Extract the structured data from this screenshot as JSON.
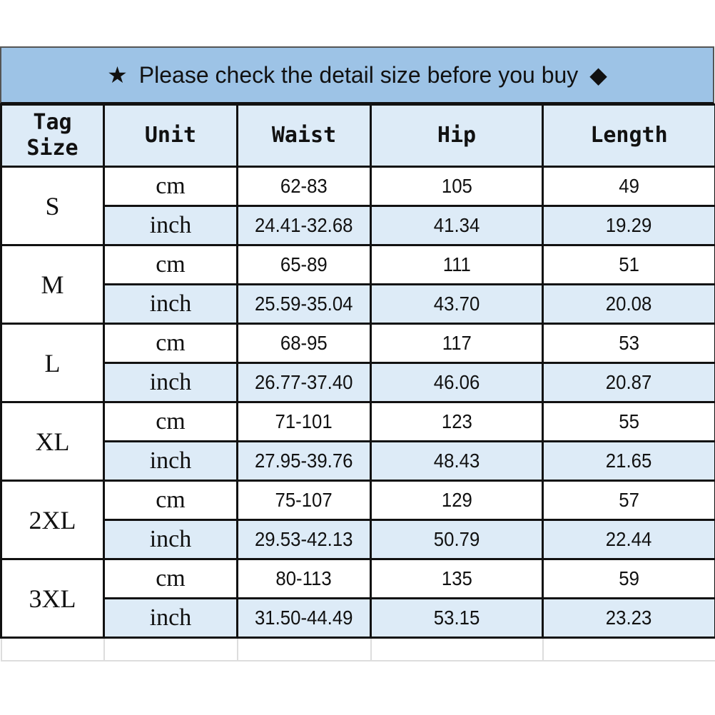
{
  "title": {
    "prefix_icon": "star-icon",
    "text": "Please check the detail size before you buy",
    "suffix_icon": "diamond-icon",
    "prefix_glyph": "★",
    "suffix_glyph": "◆"
  },
  "colors": {
    "title_bg": "#9dc3e6",
    "alt_row_bg": "#ddebf7"
  },
  "headers": [
    "Tag Size",
    "Unit",
    "Waist",
    "Hip",
    "Length"
  ],
  "sizes": [
    {
      "size": "S",
      "rows": [
        [
          "cm",
          "62-83",
          "105",
          "49"
        ],
        [
          "inch",
          "24.41-32.68",
          "41.34",
          "19.29"
        ]
      ]
    },
    {
      "size": "M",
      "rows": [
        [
          "cm",
          "65-89",
          "111",
          "51"
        ],
        [
          "inch",
          "25.59-35.04",
          "43.70",
          "20.08"
        ]
      ]
    },
    {
      "size": "L",
      "rows": [
        [
          "cm",
          "68-95",
          "117",
          "53"
        ],
        [
          "inch",
          "26.77-37.40",
          "46.06",
          "20.87"
        ]
      ]
    },
    {
      "size": "XL",
      "rows": [
        [
          "cm",
          "71-101",
          "123",
          "55"
        ],
        [
          "inch",
          "27.95-39.76",
          "48.43",
          "21.65"
        ]
      ]
    },
    {
      "size": "2XL",
      "rows": [
        [
          "cm",
          "75-107",
          "129",
          "57"
        ],
        [
          "inch",
          "29.53-42.13",
          "50.79",
          "22.44"
        ]
      ]
    },
    {
      "size": "3XL",
      "rows": [
        [
          "cm",
          "80-113",
          "135",
          "59"
        ],
        [
          "inch",
          "31.50-44.49",
          "53.15",
          "23.23"
        ]
      ]
    }
  ]
}
